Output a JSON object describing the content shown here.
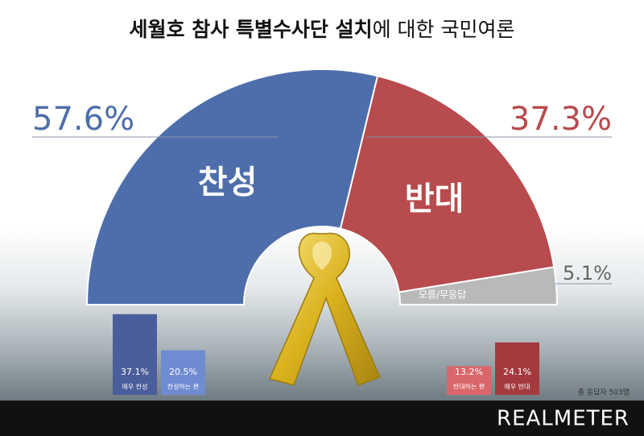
{
  "title_bold": "세월호 참사 특별수사단 설치",
  "title_rest": "에 대한 국민여론",
  "note": "총 응답자 503명",
  "brand": "REALMETER",
  "chart_data": [
    {
      "type": "half-donut",
      "categories": [
        "찬성",
        "반대",
        "모름/무응답"
      ],
      "values": [
        57.6,
        37.3,
        5.1
      ],
      "value_labels": [
        "57.6%",
        "37.3%",
        "5.1%"
      ],
      "colors": [
        "#4e6eab",
        "#b74b4d",
        "#b9b9b9"
      ]
    },
    {
      "type": "bar",
      "categories": [
        "매우 찬성",
        "찬성하는 편",
        "반대하는 편",
        "매우 반대"
      ],
      "values": [
        37.1,
        20.5,
        13.2,
        24.1
      ],
      "value_labels": [
        "37.1%",
        "20.5%",
        "13.2%",
        "24.1%"
      ],
      "colors": [
        "#4a5d9c",
        "#6f8bd1",
        "#d9676a",
        "#a43a3d"
      ]
    }
  ]
}
